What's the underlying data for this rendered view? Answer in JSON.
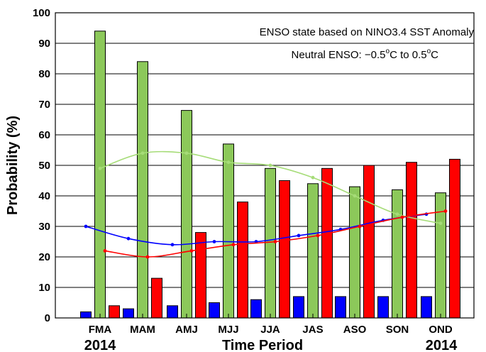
{
  "chart_data": {
    "type": "bar",
    "xlabel": "Time Period",
    "ylabel": "Probability (%)",
    "ylim": [
      0,
      100
    ],
    "yticks": [
      0,
      10,
      20,
      30,
      40,
      50,
      60,
      70,
      80,
      90,
      100
    ],
    "categories": [
      "FMA",
      "MAM",
      "AMJ",
      "MJJ",
      "JJA",
      "JAS",
      "ASO",
      "SON",
      "OND"
    ],
    "year_start": "2014",
    "year_end": "2014",
    "annotations": {
      "line1": "ENSO state based on NINO3.4 SST Anomaly",
      "line2_prefix": "Neutral ENSO: −0.5",
      "line2_sup1": "o",
      "line2_mid": "C to 0.5",
      "line2_sup2": "o",
      "line2_suffix": "C"
    },
    "colors": {
      "blue": "#0000ff",
      "green": "#8cc85a",
      "red": "#ff0000",
      "green_line": "#a6dc78"
    },
    "series": [
      {
        "color_key": "blue",
        "values": [
          2,
          3,
          4,
          5,
          6,
          7,
          7,
          7,
          7
        ]
      },
      {
        "color_key": "green",
        "values": [
          94,
          84,
          68,
          57,
          49,
          44,
          43,
          42,
          41
        ]
      },
      {
        "color_key": "red",
        "values": [
          4,
          13,
          28,
          38,
          45,
          49,
          50,
          51,
          52
        ]
      }
    ],
    "climatology_lines": [
      {
        "color_key": "blue",
        "values": [
          30,
          26,
          24,
          25,
          25,
          27,
          29,
          32,
          34
        ]
      },
      {
        "color_key": "green_line",
        "values": [
          49,
          54,
          54,
          51,
          50,
          46,
          40,
          34,
          31
        ]
      },
      {
        "color_key": "red",
        "values": [
          22,
          20,
          22,
          24,
          25,
          27,
          30,
          33,
          35
        ]
      }
    ]
  }
}
